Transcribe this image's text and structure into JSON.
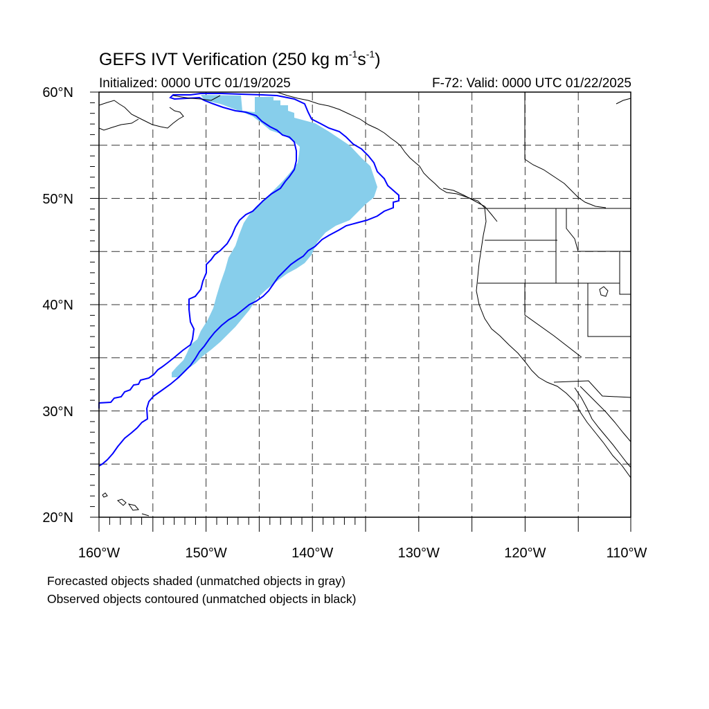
{
  "title": {
    "main": "GEFS IVT Verification (250 kg m",
    "exp1": "-1",
    "mid": "s",
    "exp2": "-1",
    "close": ")"
  },
  "subtitle": {
    "initialized": "Initialized: 0000 UTC 01/19/2025",
    "valid": "F-72: Valid: 0000 UTC 01/22/2025"
  },
  "notes": {
    "forecast": "Forecasted objects shaded (unmatched objects in gray)",
    "observed": "Observed objects contoured (unmatched objects in black)"
  },
  "map": {
    "lat_range": [
      20,
      60
    ],
    "lon_range": [
      -160,
      -110
    ],
    "gridlines": "dashed",
    "lat_labels": [
      "60°N",
      "50°N",
      "40°N",
      "30°N",
      "20°N"
    ],
    "lon_labels": [
      "160°W",
      "150°W",
      "140°W",
      "130°W",
      "120°W",
      "110°W"
    ],
    "colors": {
      "forecast_fill": "#87ceeb",
      "observed_contour": "#0000ff",
      "coastline": "#000000"
    }
  }
}
